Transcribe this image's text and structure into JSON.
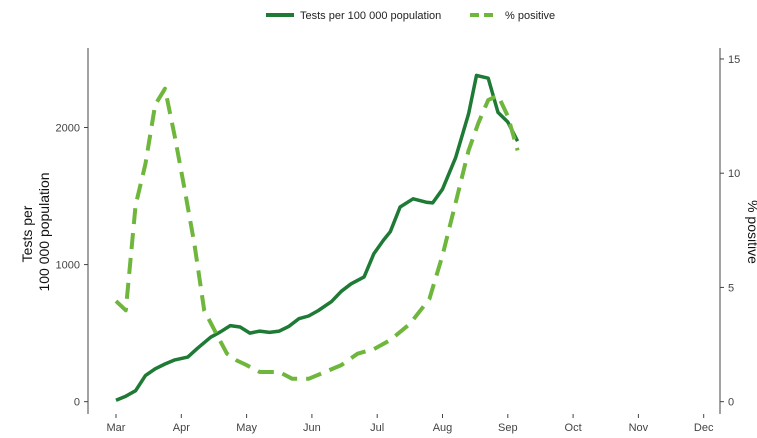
{
  "chart_data": {
    "type": "line",
    "x_tick_labels": [
      "Mar",
      "Apr",
      "May",
      "Jun",
      "Jul",
      "Aug",
      "Sep",
      "Oct",
      "Nov",
      "Dec"
    ],
    "y_left": {
      "label": "Tests per\n100 000 population",
      "ticks": [
        0,
        1000,
        2000
      ],
      "range": [
        -90,
        2580
      ]
    },
    "y_right": {
      "label": "% positive",
      "ticks": [
        0,
        5,
        10,
        15
      ],
      "range": [
        -0.54,
        15.48
      ]
    },
    "legend_position": "top",
    "grid": false,
    "series": [
      {
        "name": "Tests per 100 000 population",
        "axis": "left",
        "style": "solid",
        "color": "#1e7a34",
        "points": [
          [
            0,
            10
          ],
          [
            0.15,
            40
          ],
          [
            0.3,
            80
          ],
          [
            0.45,
            190
          ],
          [
            0.6,
            240
          ],
          [
            0.75,
            275
          ],
          [
            0.9,
            305
          ],
          [
            1.1,
            325
          ],
          [
            1.25,
            390
          ],
          [
            1.45,
            470
          ],
          [
            1.6,
            510
          ],
          [
            1.75,
            555
          ],
          [
            1.9,
            545
          ],
          [
            2.05,
            500
          ],
          [
            2.2,
            515
          ],
          [
            2.35,
            505
          ],
          [
            2.5,
            515
          ],
          [
            2.65,
            550
          ],
          [
            2.8,
            605
          ],
          [
            2.95,
            625
          ],
          [
            3.1,
            665
          ],
          [
            3.3,
            730
          ],
          [
            3.45,
            805
          ],
          [
            3.6,
            860
          ],
          [
            3.8,
            910
          ],
          [
            3.95,
            1080
          ],
          [
            4.1,
            1180
          ],
          [
            4.2,
            1240
          ],
          [
            4.35,
            1420
          ],
          [
            4.55,
            1480
          ],
          [
            4.75,
            1455
          ],
          [
            4.85,
            1450
          ],
          [
            5.0,
            1550
          ],
          [
            5.2,
            1780
          ],
          [
            5.4,
            2100
          ],
          [
            5.52,
            2380
          ],
          [
            5.7,
            2360
          ],
          [
            5.85,
            2110
          ],
          [
            6.0,
            2040
          ],
          [
            6.15,
            1900
          ]
        ]
      },
      {
        "name": "% positive",
        "axis": "right",
        "style": "dashed",
        "color": "#6fb63c",
        "points": [
          [
            0,
            4.4
          ],
          [
            0.15,
            4.0
          ],
          [
            0.3,
            8.6
          ],
          [
            0.45,
            10.4
          ],
          [
            0.6,
            13.0
          ],
          [
            0.75,
            13.7
          ],
          [
            0.9,
            11.6
          ],
          [
            1.05,
            9.3
          ],
          [
            1.2,
            6.9
          ],
          [
            1.35,
            4.0
          ],
          [
            1.55,
            2.9
          ],
          [
            1.7,
            2.1
          ],
          [
            1.85,
            1.8
          ],
          [
            2.0,
            1.6
          ],
          [
            2.2,
            1.3
          ],
          [
            2.5,
            1.3
          ],
          [
            2.7,
            1.0
          ],
          [
            2.95,
            1.0
          ],
          [
            3.2,
            1.3
          ],
          [
            3.45,
            1.6
          ],
          [
            3.7,
            2.1
          ],
          [
            3.95,
            2.3
          ],
          [
            4.2,
            2.7
          ],
          [
            4.5,
            3.4
          ],
          [
            4.8,
            4.5
          ],
          [
            5.0,
            6.4
          ],
          [
            5.2,
            8.7
          ],
          [
            5.4,
            11.0
          ],
          [
            5.55,
            12.2
          ],
          [
            5.7,
            13.2
          ],
          [
            5.85,
            13.4
          ],
          [
            6.0,
            12.5
          ],
          [
            6.15,
            11.0
          ]
        ]
      }
    ]
  }
}
